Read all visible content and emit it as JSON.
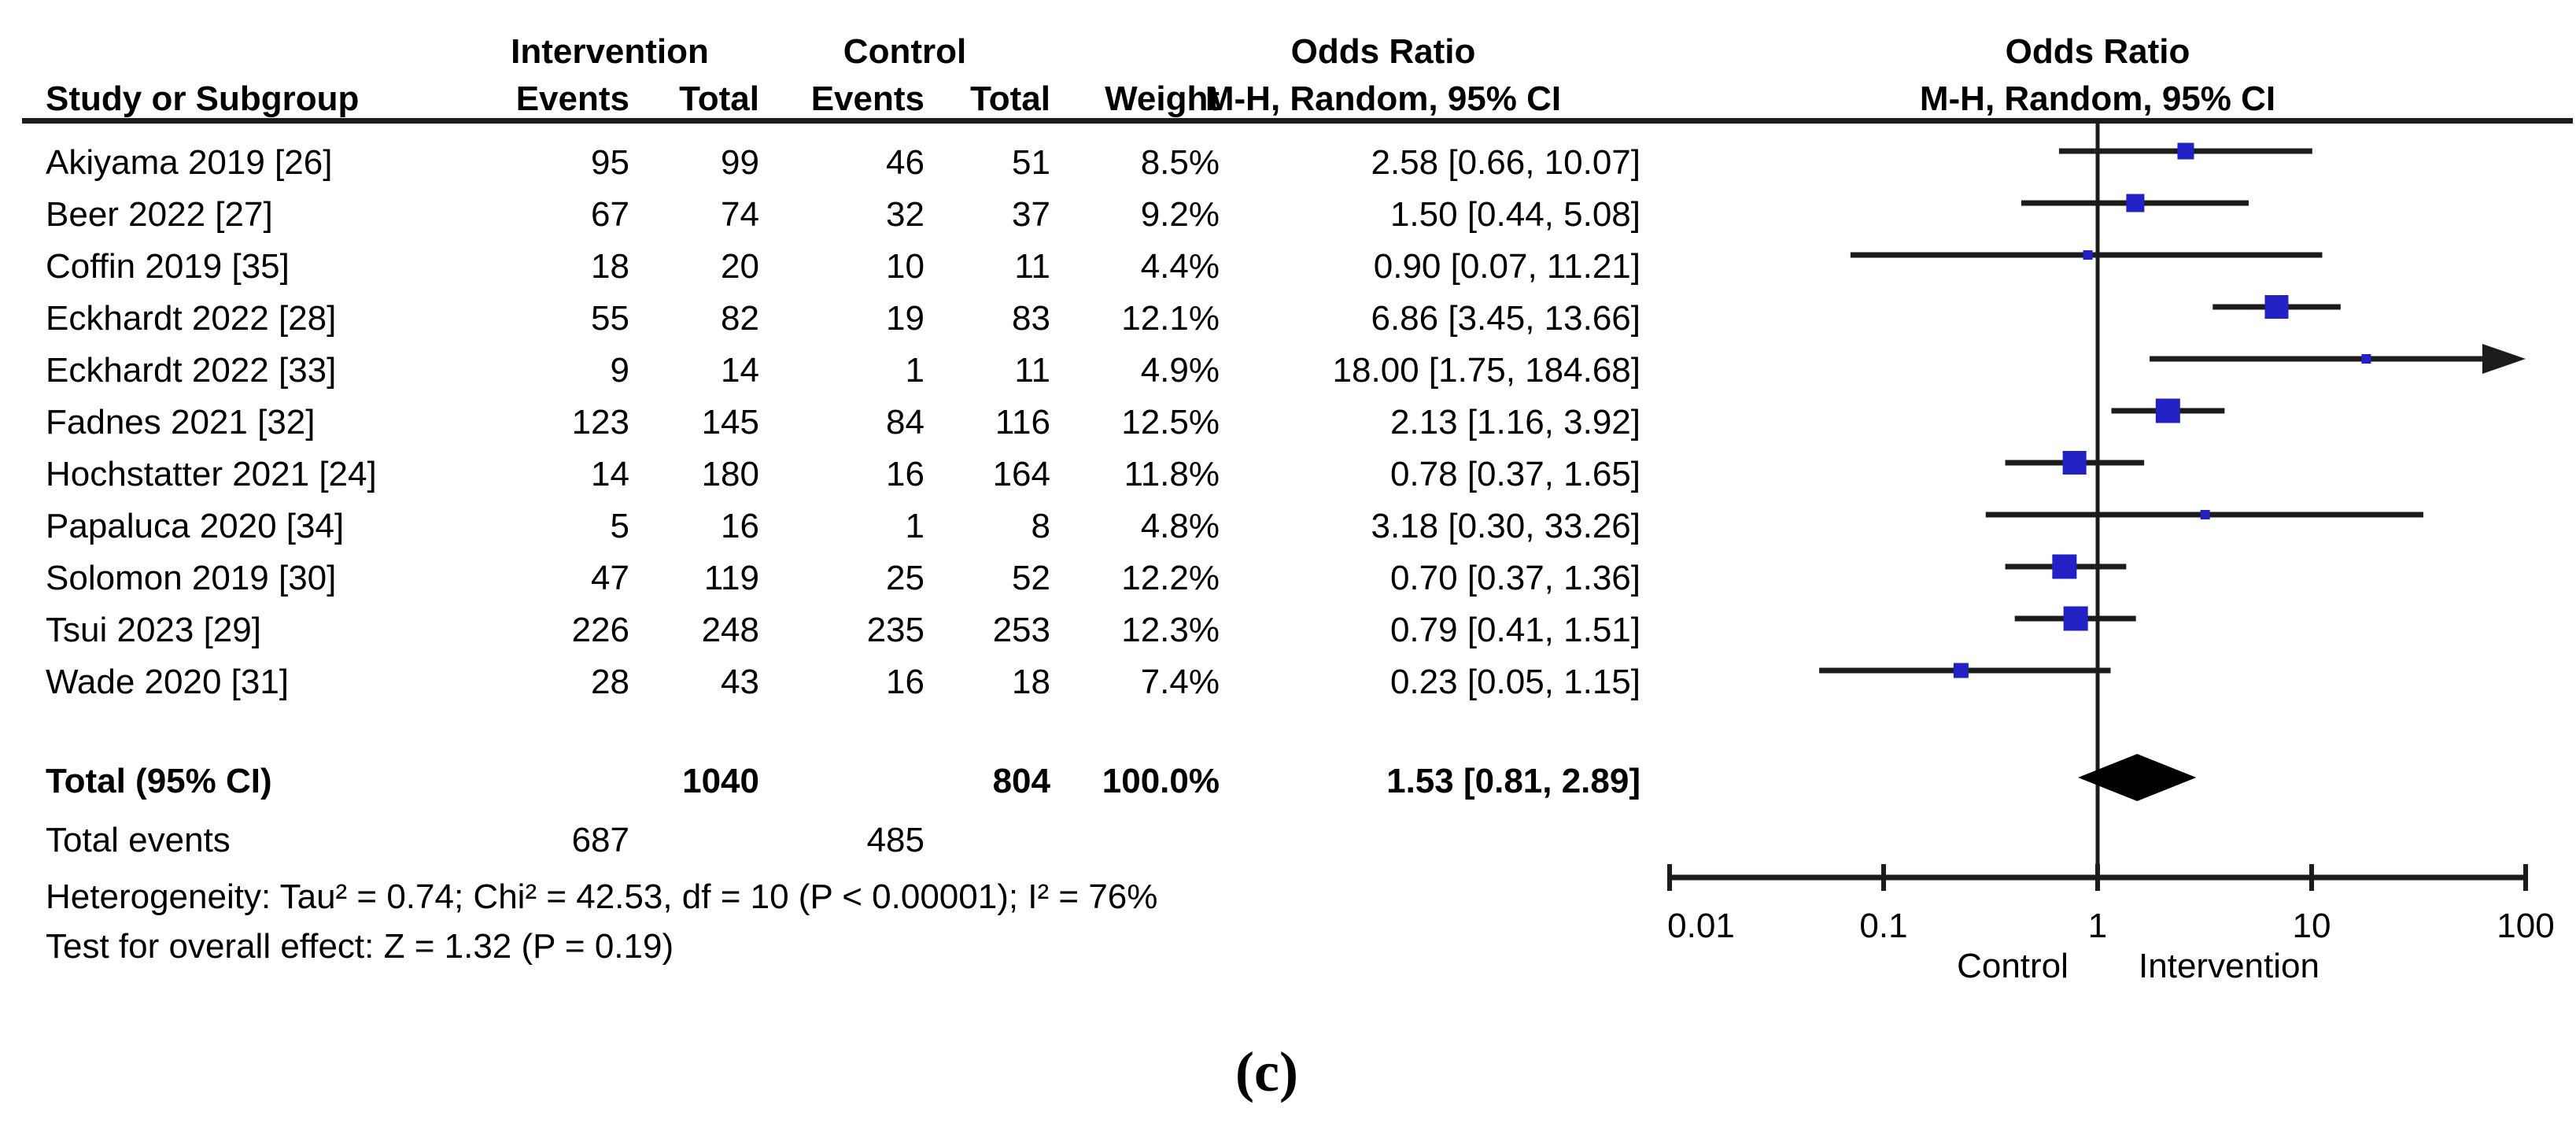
{
  "figure": {
    "caption": "(c)"
  },
  "table": {
    "headers": {
      "group_intervention": "Intervention",
      "group_control": "Control",
      "study": "Study or Subgroup",
      "events": "Events",
      "total": "Total",
      "weight": "Weight",
      "odds_ratio": "Odds Ratio",
      "odds_ratio_method": "M-H, Random, 95% CI"
    },
    "total_row": {
      "label": "Total (95% CI)",
      "intervention_total": "1040",
      "control_total": "804",
      "weight": "100.0%",
      "or_text": "1.53 [0.81, 2.89]"
    },
    "total_events_row": {
      "label": "Total events",
      "intervention_events": "687",
      "control_events": "485"
    },
    "heterogeneity": "Heterogeneity: Tau² = 0.74; Chi² = 42.53, df = 10 (P < 0.00001); I² = 76%",
    "overall_effect": "Test for overall effect: Z = 1.32 (P = 0.19)"
  },
  "chart_data": {
    "type": "forest",
    "effect_measure": "Odds Ratio",
    "method": "M-H, Random, 95% CI",
    "x_scale": "log",
    "xlim": [
      0.01,
      100
    ],
    "axis_ticks": [
      "0.01",
      "0.1",
      "1",
      "10",
      "100"
    ],
    "axis_label_left": "Control",
    "axis_label_right": "Intervention",
    "marker_color": "#2222c4",
    "line_color": "#1c1c1c",
    "studies": [
      {
        "name": "Akiyama 2019 [26]",
        "intervention_events": "95",
        "intervention_total": "99",
        "control_events": "46",
        "control_total": "51",
        "weight": "8.5%",
        "weight_pct": 8.5,
        "or": 2.58,
        "ci_low": 0.66,
        "ci_high": 10.07,
        "or_text": "2.58 [0.66, 10.07]"
      },
      {
        "name": "Beer 2022 [27]",
        "intervention_events": "67",
        "intervention_total": "74",
        "control_events": "32",
        "control_total": "37",
        "weight": "9.2%",
        "weight_pct": 9.2,
        "or": 1.5,
        "ci_low": 0.44,
        "ci_high": 5.08,
        "or_text": "1.50 [0.44, 5.08]"
      },
      {
        "name": "Coffin 2019 [35]",
        "intervention_events": "18",
        "intervention_total": "20",
        "control_events": "10",
        "control_total": "11",
        "weight": "4.4%",
        "weight_pct": 4.4,
        "or": 0.9,
        "ci_low": 0.07,
        "ci_high": 11.21,
        "or_text": "0.90 [0.07, 11.21]"
      },
      {
        "name": "Eckhardt 2022 [28]",
        "intervention_events": "55",
        "intervention_total": "82",
        "control_events": "19",
        "control_total": "83",
        "weight": "12.1%",
        "weight_pct": 12.1,
        "or": 6.86,
        "ci_low": 3.45,
        "ci_high": 13.66,
        "or_text": "6.86 [3.45, 13.66]"
      },
      {
        "name": "Eckhardt 2022 [33]",
        "intervention_events": "9",
        "intervention_total": "14",
        "control_events": "1",
        "control_total": "11",
        "weight": "4.9%",
        "weight_pct": 4.9,
        "or": 18.0,
        "ci_low": 1.75,
        "ci_high": 184.68,
        "or_text": "18.00 [1.75, 184.68]"
      },
      {
        "name": "Fadnes 2021 [32]",
        "intervention_events": "123",
        "intervention_total": "145",
        "control_events": "84",
        "control_total": "116",
        "weight": "12.5%",
        "weight_pct": 12.5,
        "or": 2.13,
        "ci_low": 1.16,
        "ci_high": 3.92,
        "or_text": "2.13 [1.16, 3.92]"
      },
      {
        "name": "Hochstatter 2021 [24]",
        "intervention_events": "14",
        "intervention_total": "180",
        "control_events": "16",
        "control_total": "164",
        "weight": "11.8%",
        "weight_pct": 11.8,
        "or": 0.78,
        "ci_low": 0.37,
        "ci_high": 1.65,
        "or_text": "0.78 [0.37, 1.65]"
      },
      {
        "name": "Papaluca 2020 [34]",
        "intervention_events": "5",
        "intervention_total": "16",
        "control_events": "1",
        "control_total": "8",
        "weight": "4.8%",
        "weight_pct": 4.8,
        "or": 3.18,
        "ci_low": 0.3,
        "ci_high": 33.26,
        "or_text": "3.18 [0.30, 33.26]"
      },
      {
        "name": "Solomon 2019 [30]",
        "intervention_events": "47",
        "intervention_total": "119",
        "control_events": "25",
        "control_total": "52",
        "weight": "12.2%",
        "weight_pct": 12.2,
        "or": 0.7,
        "ci_low": 0.37,
        "ci_high": 1.36,
        "or_text": "0.70 [0.37, 1.36]"
      },
      {
        "name": "Tsui 2023 [29]",
        "intervention_events": "226",
        "intervention_total": "248",
        "control_events": "235",
        "control_total": "253",
        "weight": "12.3%",
        "weight_pct": 12.3,
        "or": 0.79,
        "ci_low": 0.41,
        "ci_high": 1.51,
        "or_text": "0.79 [0.41, 1.51]"
      },
      {
        "name": "Wade 2020 [31]",
        "intervention_events": "28",
        "intervention_total": "43",
        "control_events": "16",
        "control_total": "18",
        "weight": "7.4%",
        "weight_pct": 7.4,
        "or": 0.23,
        "ci_low": 0.05,
        "ci_high": 1.15,
        "or_text": "0.23 [0.05, 1.15]"
      }
    ],
    "total": {
      "or": 1.53,
      "ci_low": 0.81,
      "ci_high": 2.89
    }
  }
}
